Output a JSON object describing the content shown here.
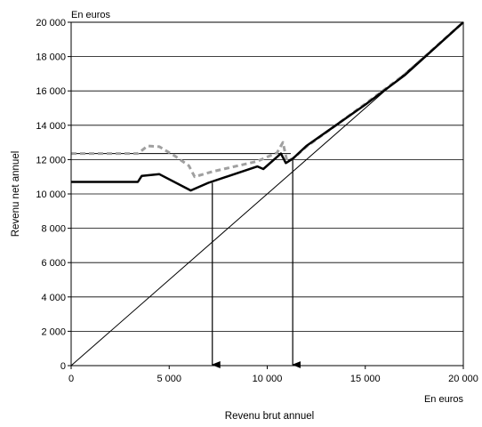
{
  "chart_data": {
    "type": "line",
    "title": "",
    "xlabel": "Revenu brut annuel",
    "ylabel": "Revenu net annuel",
    "x_unit": "En euros",
    "y_unit": "En euros",
    "xlim": [
      0,
      20000
    ],
    "ylim": [
      0,
      20000
    ],
    "x_ticks": [
      "0",
      "5 000",
      "10 000",
      "15 000",
      "20 000"
    ],
    "x_tick_values": [
      0,
      5000,
      10000,
      15000,
      20000
    ],
    "y_ticks": [
      "0",
      "2 000",
      "4 000",
      "6 000",
      "8 000",
      "10 000",
      "12 000",
      "14 000",
      "16 000",
      "18 000",
      "20 000"
    ],
    "y_tick_values": [
      0,
      2000,
      4000,
      6000,
      8000,
      10000,
      12000,
      14000,
      16000,
      18000,
      20000
    ],
    "grid": "horizontal",
    "legend": "none",
    "series": [
      {
        "color": "#000000",
        "style": "solid-thick",
        "points": [
          [
            0,
            10700
          ],
          [
            3400,
            10700
          ],
          [
            3600,
            11050
          ],
          [
            4500,
            11150
          ],
          [
            6100,
            10200
          ],
          [
            7000,
            10650
          ],
          [
            9500,
            11600
          ],
          [
            9800,
            11450
          ],
          [
            10700,
            12350
          ],
          [
            10950,
            11800
          ],
          [
            11300,
            12050
          ],
          [
            12000,
            12800
          ],
          [
            15000,
            15200
          ],
          [
            17000,
            16900
          ],
          [
            20000,
            20000
          ]
        ]
      },
      {
        "color": "#a0a0a0",
        "style": "dashed-thick",
        "points": [
          [
            0,
            12350
          ],
          [
            3400,
            12350
          ],
          [
            3900,
            12800
          ],
          [
            4500,
            12750
          ],
          [
            5300,
            12200
          ],
          [
            6000,
            11650
          ],
          [
            6300,
            11000
          ],
          [
            7200,
            11300
          ],
          [
            9500,
            11900
          ],
          [
            10500,
            12400
          ],
          [
            10800,
            13000
          ],
          [
            11000,
            11950
          ],
          [
            11300,
            12050
          ],
          [
            12000,
            12750
          ],
          [
            15000,
            15250
          ],
          [
            17000,
            16950
          ],
          [
            20000,
            20000
          ]
        ]
      },
      {
        "color": "#000000",
        "style": "solid-thin",
        "points": [
          [
            0,
            0
          ],
          [
            20000,
            20000
          ]
        ]
      }
    ],
    "reference_lines": [
      {
        "type": "horizontal-segment",
        "y": 12350,
        "x_from": 0,
        "x_to": 11200
      },
      {
        "type": "arrow-down",
        "x": 7200,
        "y_from": 10650,
        "y_to": 0
      },
      {
        "type": "arrow-down",
        "x": 11300,
        "y_from": 12050,
        "y_to": 0
      }
    ]
  }
}
